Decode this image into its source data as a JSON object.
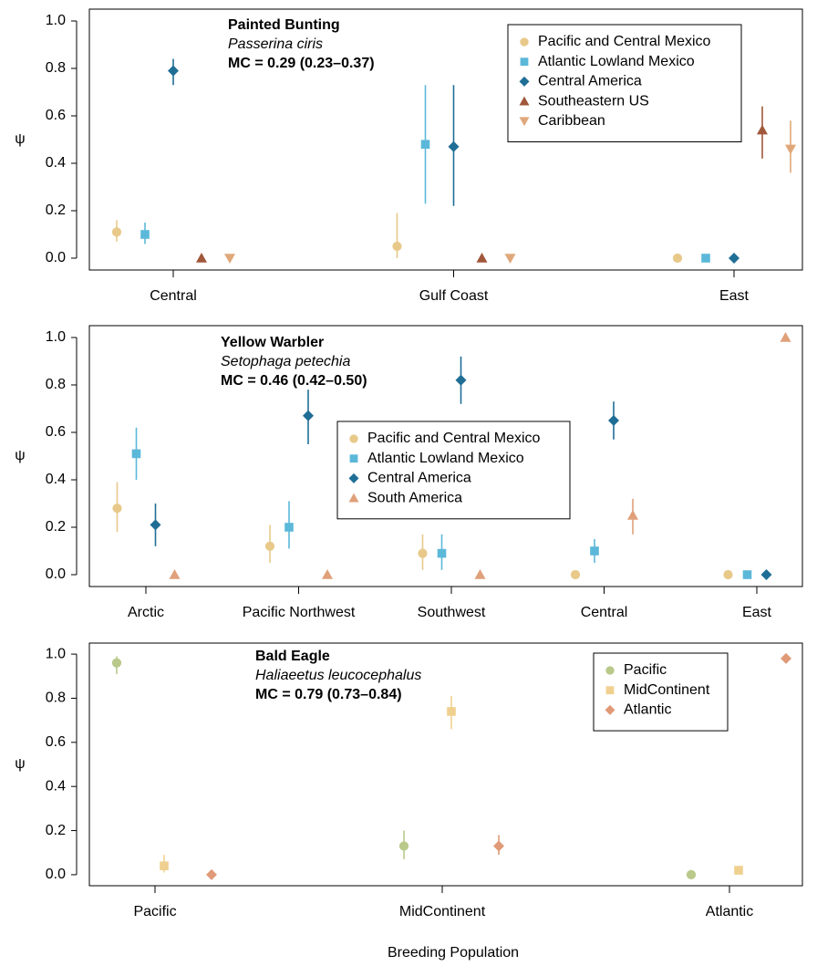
{
  "chart_data": [
    {
      "type": "scatter",
      "title": "Painted Bunting",
      "subtitle": "Passerina ciris",
      "annotation": "MC = 0.29 (0.23–0.37)",
      "ylabel": "ψ",
      "legend": "upper right",
      "categories": [
        "Central",
        "Gulf Coast",
        "East"
      ],
      "ylim": [
        -0.05,
        1.05
      ],
      "yticks": [
        {
          "value": 0,
          "label": "0.0"
        },
        {
          "value": 0.2,
          "label": "0.2"
        },
        {
          "value": 0.4,
          "label": "0.4"
        },
        {
          "value": 0.6,
          "label": "0.6"
        },
        {
          "value": 0.8,
          "label": "0.8"
        },
        {
          "value": 1,
          "label": "1.0"
        }
      ],
      "series": [
        {
          "name": "Pacific and Central Mexico",
          "color": "#e8c98a",
          "marker": "circle",
          "values": [
            0.11,
            0.05,
            0
          ],
          "lower": [
            0.07,
            0.0,
            null
          ],
          "upper": [
            0.16,
            0.19,
            null
          ]
        },
        {
          "name": "Atlantic Lowland Mexico",
          "color": "#5bb8d9",
          "marker": "square",
          "values": [
            0.1,
            0.48,
            0
          ],
          "lower": [
            0.06,
            0.23,
            null
          ],
          "upper": [
            0.15,
            0.73,
            null
          ]
        },
        {
          "name": "Central America",
          "color": "#1f6e96",
          "marker": "diamond",
          "values": [
            0.79,
            0.47,
            0
          ],
          "lower": [
            0.73,
            0.22,
            null
          ],
          "upper": [
            0.84,
            0.73,
            null
          ]
        },
        {
          "name": "Southeastern US",
          "color": "#a0573a",
          "marker": "triangle-up",
          "values": [
            0,
            0,
            0.54
          ],
          "lower": [
            null,
            null,
            0.42
          ],
          "upper": [
            null,
            null,
            0.64
          ]
        },
        {
          "name": "Caribbean",
          "color": "#e0a87a",
          "marker": "triangle-down",
          "values": [
            0,
            0,
            0.46
          ],
          "lower": [
            null,
            null,
            0.36
          ],
          "upper": [
            null,
            null,
            0.58
          ]
        }
      ]
    },
    {
      "type": "scatter",
      "title": "Yellow Warbler",
      "subtitle": "Setophaga petechia",
      "annotation": "MC = 0.46 (0.42–0.50)",
      "ylabel": "ψ",
      "legend": "center",
      "categories": [
        "Arctic",
        "Pacific Northwest",
        "Southwest",
        "Central",
        "East"
      ],
      "ylim": [
        -0.05,
        1.05
      ],
      "yticks": [
        {
          "value": 0,
          "label": "0.0"
        },
        {
          "value": 0.2,
          "label": "0.2"
        },
        {
          "value": 0.4,
          "label": "0.4"
        },
        {
          "value": 0.6,
          "label": "0.6"
        },
        {
          "value": 0.8,
          "label": "0.8"
        },
        {
          "value": 1,
          "label": "1.0"
        }
      ],
      "series": [
        {
          "name": "Pacific and Central Mexico",
          "color": "#e8c98a",
          "marker": "circle",
          "values": [
            0.28,
            0.12,
            0.09,
            0,
            0
          ],
          "lower": [
            0.18,
            0.05,
            0.02,
            null,
            null
          ],
          "upper": [
            0.39,
            0.21,
            0.17,
            null,
            null
          ]
        },
        {
          "name": "Atlantic Lowland Mexico",
          "color": "#5bb8d9",
          "marker": "square",
          "values": [
            0.51,
            0.2,
            0.09,
            0.1,
            0
          ],
          "lower": [
            0.4,
            0.11,
            0.02,
            0.05,
            null
          ],
          "upper": [
            0.62,
            0.31,
            0.17,
            0.15,
            null
          ]
        },
        {
          "name": "Central America",
          "color": "#1f6e96",
          "marker": "diamond",
          "values": [
            0.21,
            0.67,
            0.82,
            0.65,
            0
          ],
          "lower": [
            0.12,
            0.55,
            0.72,
            0.57,
            null
          ],
          "upper": [
            0.3,
            0.78,
            0.92,
            0.73,
            null
          ]
        },
        {
          "name": "South America",
          "color": "#e0a07a",
          "marker": "triangle-up",
          "values": [
            0,
            0,
            0,
            0.25,
            1.0
          ],
          "lower": [
            null,
            null,
            null,
            0.17,
            null
          ],
          "upper": [
            null,
            null,
            null,
            0.32,
            null
          ]
        }
      ]
    },
    {
      "type": "scatter",
      "title": "Bald Eagle",
      "subtitle": "Haliaeetus leucocephalus",
      "annotation": "MC = 0.79 (0.73–0.84)",
      "ylabel": "ψ",
      "xlabel": "Breeding Population",
      "legend": "upper right",
      "categories": [
        "Pacific",
        "MidContinent",
        "Atlantic"
      ],
      "ylim": [
        -0.05,
        1.05
      ],
      "yticks": [
        {
          "value": 0,
          "label": "0.0"
        },
        {
          "value": 0.2,
          "label": "0.2"
        },
        {
          "value": 0.4,
          "label": "0.4"
        },
        {
          "value": 0.6,
          "label": "0.6"
        },
        {
          "value": 0.8,
          "label": "0.8"
        },
        {
          "value": 1,
          "label": "1.0"
        }
      ],
      "series": [
        {
          "name": "Pacific",
          "color": "#b8c98a",
          "marker": "circle",
          "values": [
            0.96,
            0.13,
            0
          ],
          "lower": [
            0.91,
            0.07,
            null
          ],
          "upper": [
            0.99,
            0.2,
            null
          ]
        },
        {
          "name": "MidContinent",
          "color": "#f0d08f",
          "marker": "square",
          "values": [
            0.04,
            0.74,
            0.02
          ],
          "lower": [
            0.01,
            0.66,
            null
          ],
          "upper": [
            0.09,
            0.81,
            null
          ]
        },
        {
          "name": "Atlantic",
          "color": "#e09a78",
          "marker": "diamond",
          "values": [
            0,
            0.13,
            0.98
          ],
          "lower": [
            null,
            0.09,
            null
          ],
          "upper": [
            null,
            0.18,
            null
          ]
        }
      ]
    }
  ]
}
